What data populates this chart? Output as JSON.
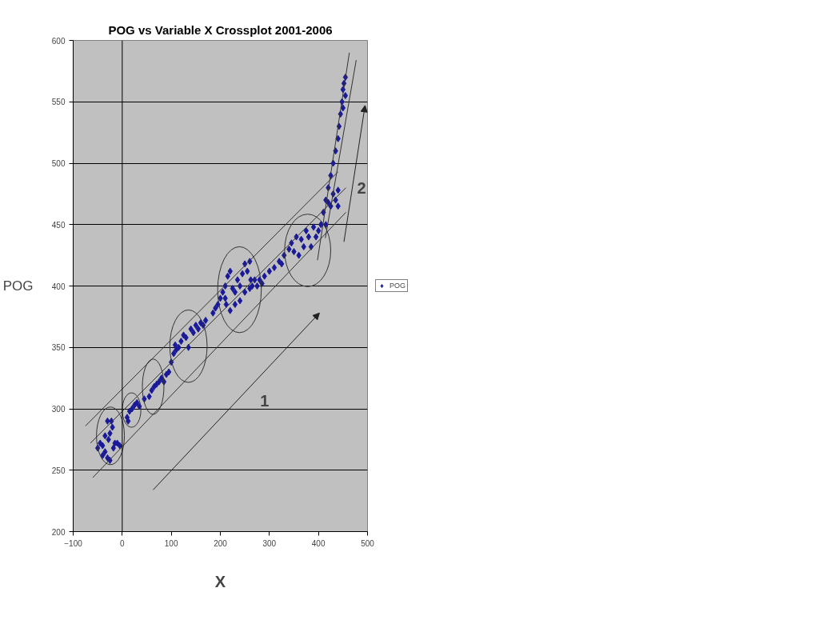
{
  "chart_data": {
    "type": "scatter",
    "title": "POG vs Variable X Crossplot 2001-2006",
    "xlabel": "X",
    "ylabel": "POG",
    "xlim": [
      -100,
      500
    ],
    "xticks": [
      -100,
      0,
      100,
      200,
      300,
      400,
      500
    ],
    "ylim": [
      200,
      600
    ],
    "yticks": [
      200,
      250,
      300,
      350,
      400,
      450,
      500,
      550,
      600
    ],
    "grid": "y",
    "legend": "right",
    "ref_lines": [
      {
        "axis": "x",
        "value": 0,
        "color": "#000000"
      }
    ],
    "annotations": [
      "1",
      "2"
    ],
    "series": [
      {
        "name": "POG",
        "color": "#1a1a99",
        "marker": "diamond",
        "x": [
          -50,
          -45,
          -40,
          -35,
          -30,
          -28,
          -25,
          -22,
          -20,
          -30,
          -35,
          -40,
          -25,
          -15,
          -10,
          -5,
          -18,
          10,
          15,
          20,
          25,
          30,
          35,
          12,
          45,
          55,
          60,
          65,
          70,
          75,
          80,
          85,
          90,
          95,
          100,
          105,
          108,
          110,
          115,
          120,
          125,
          130,
          135,
          140,
          145,
          150,
          155,
          160,
          165,
          170,
          185,
          190,
          195,
          200,
          205,
          210,
          212,
          215,
          220,
          225,
          230,
          235,
          240,
          245,
          250,
          255,
          260,
          262,
          265,
          270,
          275,
          280,
          285,
          290,
          220,
          230,
          240,
          250,
          260,
          210,
          300,
          310,
          320,
          325,
          330,
          340,
          345,
          350,
          355,
          360,
          365,
          370,
          375,
          380,
          385,
          390,
          395,
          400,
          405,
          410,
          415,
          420,
          425,
          430,
          435,
          440,
          440,
          415,
          420,
          425,
          430,
          435,
          440,
          442,
          445,
          448,
          450,
          452,
          455,
          455,
          450
        ],
        "values": [
          268,
          272,
          270,
          265,
          260,
          275,
          280,
          290,
          285,
          290,
          278,
          262,
          258,
          272,
          272,
          270,
          268,
          293,
          298,
          300,
          303,
          305,
          302,
          290,
          308,
          310,
          315,
          318,
          320,
          322,
          325,
          322,
          328,
          330,
          338,
          345,
          352,
          348,
          350,
          355,
          360,
          358,
          350,
          365,
          362,
          368,
          365,
          370,
          368,
          372,
          378,
          382,
          385,
          390,
          395,
          400,
          385,
          408,
          412,
          398,
          395,
          405,
          400,
          410,
          418,
          412,
          420,
          405,
          400,
          405,
          400,
          405,
          402,
          408,
          380,
          385,
          388,
          395,
          398,
          390,
          412,
          415,
          420,
          418,
          425,
          430,
          435,
          428,
          440,
          425,
          438,
          432,
          445,
          440,
          432,
          448,
          440,
          445,
          450,
          460,
          470,
          468,
          465,
          475,
          470,
          465,
          478,
          450,
          480,
          490,
          500,
          510,
          520,
          530,
          540,
          550,
          560,
          565,
          570,
          555,
          545
        ]
      },
      {
        "type": "line",
        "color": "#333333",
        "x": [
          -75,
          440
        ],
        "values": [
          286,
          493
        ]
      },
      {
        "type": "line",
        "color": "#333333",
        "x": [
          -65,
          456
        ],
        "values": [
          272,
          480
        ]
      },
      {
        "type": "line",
        "color": "#333333",
        "x": [
          -60,
          456
        ],
        "values": [
          244,
          460
        ]
      },
      {
        "type": "line",
        "color": "#333333",
        "x": [
          398,
          463
        ],
        "values": [
          421,
          590
        ]
      },
      {
        "type": "line",
        "color": "#333333",
        "x": [
          414,
          477
        ],
        "values": [
          439,
          584
        ]
      }
    ]
  }
}
